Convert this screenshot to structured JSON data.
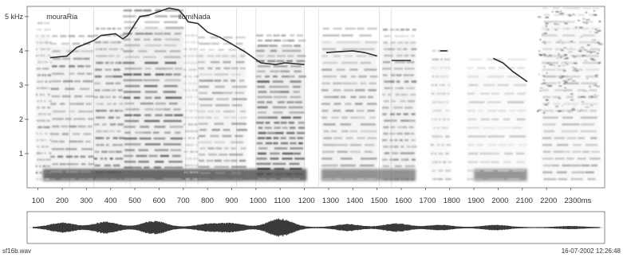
{
  "chart_data": {
    "type": "heatmap",
    "title": "",
    "y_ticks": [
      {
        "value": 1,
        "label": "1"
      },
      {
        "value": 2,
        "label": "2"
      },
      {
        "value": 3,
        "label": "3"
      },
      {
        "value": 4,
        "label": "4"
      },
      {
        "value": 5,
        "label": "5 kHz"
      }
    ],
    "ylim": [
      0,
      5.3
    ],
    "xlim": [
      55,
      2440
    ],
    "x_ticks": [
      {
        "value": 100,
        "label": "100"
      },
      {
        "value": 200,
        "label": "200"
      },
      {
        "value": 300,
        "label": "300"
      },
      {
        "value": 400,
        "label": "400"
      },
      {
        "value": 500,
        "label": "500"
      },
      {
        "value": 600,
        "label": "600"
      },
      {
        "value": 700,
        "label": "700"
      },
      {
        "value": 800,
        "label": "800"
      },
      {
        "value": 900,
        "label": "900"
      },
      {
        "value": 1000,
        "label": "1000"
      },
      {
        "value": 1100,
        "label": "1100"
      },
      {
        "value": 1200,
        "label": "1200"
      },
      {
        "value": 1300,
        "label": "1300"
      },
      {
        "value": 1400,
        "label": "1400"
      },
      {
        "value": 1500,
        "label": "1500"
      },
      {
        "value": 1600,
        "label": "1600"
      },
      {
        "value": 1700,
        "label": "1700"
      },
      {
        "value": 1800,
        "label": "1800"
      },
      {
        "value": 1900,
        "label": "1900"
      },
      {
        "value": 2000,
        "label": "2000"
      },
      {
        "value": 2100,
        "label": "2100"
      },
      {
        "value": 2200,
        "label": "2200"
      },
      {
        "value": 2300,
        "label": "2300ms"
      }
    ],
    "annotations": [
      {
        "text": "mouraRia",
        "x": 135,
        "y": 5.0
      },
      {
        "text": "ilomiNada",
        "x": 680,
        "y": 5.0
      }
    ],
    "pitch_contour": [
      [
        [
          150,
          3.8
        ],
        [
          220,
          3.85
        ],
        [
          260,
          4.1
        ],
        [
          330,
          4.3
        ],
        [
          360,
          4.45
        ],
        [
          420,
          4.5
        ],
        [
          450,
          4.35
        ],
        [
          470,
          4.45
        ],
        [
          520,
          5.0
        ],
        [
          560,
          5.05
        ],
        [
          600,
          5.15
        ],
        [
          640,
          5.25
        ],
        [
          680,
          5.2
        ],
        [
          700,
          5.05
        ],
        [
          720,
          4.85
        ],
        [
          760,
          4.8
        ],
        [
          800,
          4.55
        ],
        [
          850,
          4.4
        ],
        [
          900,
          4.2
        ],
        [
          960,
          3.95
        ],
        [
          1020,
          3.65
        ],
        [
          1080,
          3.6
        ],
        [
          1120,
          3.65
        ],
        [
          1200,
          3.6
        ]
      ],
      [
        [
          1290,
          3.95
        ],
        [
          1350,
          3.98
        ],
        [
          1400,
          4.0
        ],
        [
          1450,
          3.95
        ],
        [
          1500,
          3.85
        ]
      ],
      [
        [
          1560,
          3.72
        ],
        [
          1640,
          3.72
        ]
      ],
      [
        [
          1760,
          4.0
        ],
        [
          1790,
          4.0
        ]
      ],
      [
        [
          1980,
          3.78
        ],
        [
          2020,
          3.65
        ],
        [
          2060,
          3.4
        ],
        [
          2120,
          3.1
        ]
      ]
    ],
    "footer_left": "sf16b.wav",
    "footer_right": "16-07-2002 12:26:48"
  }
}
